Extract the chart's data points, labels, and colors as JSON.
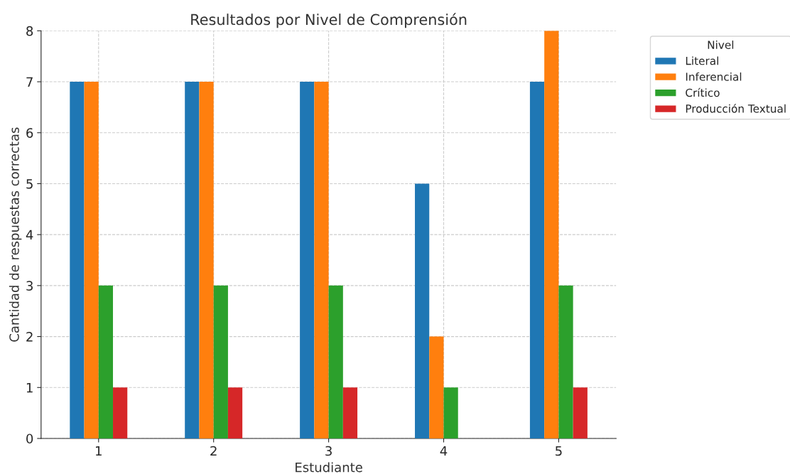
{
  "chart_data": {
    "type": "bar",
    "title": "Resultados por Nivel de Comprensión",
    "xlabel": "Estudiante",
    "ylabel": "Cantidad de respuestas correctas",
    "legend_title": "Nivel",
    "categories": [
      "1",
      "2",
      "3",
      "4",
      "5"
    ],
    "series": [
      {
        "name": "Literal",
        "color": "#1f77b4",
        "values": [
          7,
          7,
          7,
          5,
          7
        ]
      },
      {
        "name": "Inferencial",
        "color": "#ff7f0e",
        "values": [
          7,
          7,
          7,
          2,
          8
        ]
      },
      {
        "name": "Crítico",
        "color": "#2ca02c",
        "values": [
          3,
          3,
          3,
          1,
          3
        ]
      },
      {
        "name": "Producción Textual",
        "color": "#d62728",
        "values": [
          1,
          1,
          1,
          0,
          1
        ]
      }
    ],
    "ylim": [
      0,
      8
    ],
    "yticks": [
      0,
      1,
      2,
      3,
      4,
      5,
      6,
      7,
      8
    ],
    "grid": true,
    "legend": "right"
  }
}
